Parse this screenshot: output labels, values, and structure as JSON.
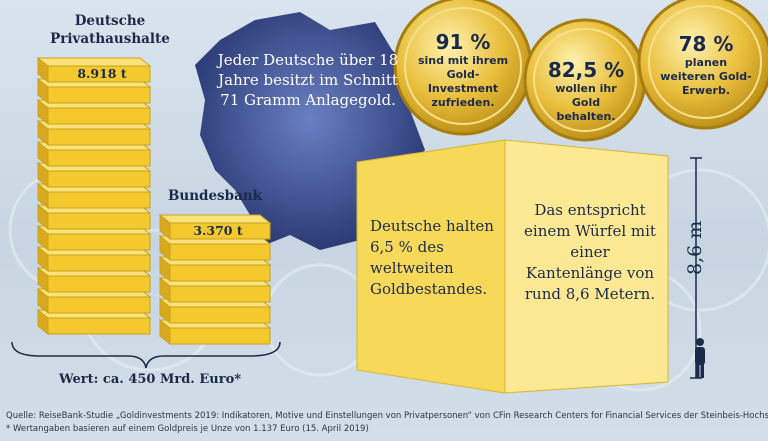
{
  "households": {
    "title": "Deutsche\nPrivathaushalte",
    "amount": "8.918 t"
  },
  "bundesbank": {
    "title": "Bundesbank",
    "amount": "3.370 t"
  },
  "value": "Wert: ca. 450 Mrd. Euro*",
  "germany": {
    "text": "Jeder Deutsche über 18 Jahre besitzt im Schnitt 71 Gramm Anlagegold."
  },
  "coins": [
    {
      "pct": "91 %",
      "text": "sind mit ihrem Gold-Investment zufrieden."
    },
    {
      "pct": "82,5 %",
      "text": "wollen ihr Gold behalten."
    },
    {
      "pct": "78 %",
      "text": "planen weiteren Gold-Erwerb."
    }
  ],
  "cube": {
    "left": "Deutsche halten 6,5 % des weltweiten Goldbestandes.",
    "right": "Das entspricht einem Würfel mit einer Kantenlänge von rund 8,6 Metern.",
    "measure": "8,6 m"
  },
  "footer": {
    "source": "Quelle: ReiseBank-Studie „Goldinvestments 2019: Indikatoren, Motive und Einstellungen von Privatpersonen“ von CFin Research Centers for Financial Services der Steinbeis-Hochschule Berlin",
    "note": "* Wertangaben basieren auf einem Goldpreis je Unze von 1.137 Euro (15. April 2019)"
  },
  "colors": {
    "gold": "#f5d23c",
    "navy": "#1b2a4a",
    "map": "#3a4f8f",
    "cube": "#fbe27a"
  },
  "icons": [
    "person-silhouette-icon",
    "brace-icon"
  ]
}
